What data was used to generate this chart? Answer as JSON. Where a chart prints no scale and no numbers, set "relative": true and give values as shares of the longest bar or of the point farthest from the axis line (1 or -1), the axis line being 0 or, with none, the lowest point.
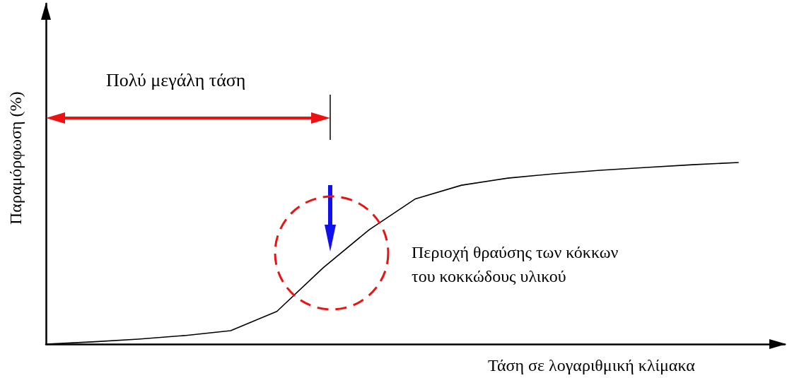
{
  "chart_data": {
    "type": "line",
    "relative": true,
    "xlabel": "Τάση σε λογαριθμική κλίμακα",
    "ylabel": "Παραμόρφωση (%)",
    "categories": [
      null,
      null,
      null,
      null,
      null,
      null,
      null,
      null,
      null,
      null,
      null,
      null,
      null,
      null,
      null,
      null
    ],
    "series": [
      {
        "color": "#000000",
        "values": [
          0,
          0.012,
          0.027,
          0.047,
          0.074,
          0.18,
          0.42,
          0.63,
          0.8,
          0.875,
          0.914,
          0.938,
          0.957,
          0.973,
          0.988,
          1
        ]
      }
    ],
    "annotations": [
      "Πολύ μεγάλη τάση",
      "Περιοχή θραύσης των κόκκων\nτου κοκκώδους υλικού"
    ],
    "marker": "none",
    "line_style": "solid",
    "grid": false
  }
}
